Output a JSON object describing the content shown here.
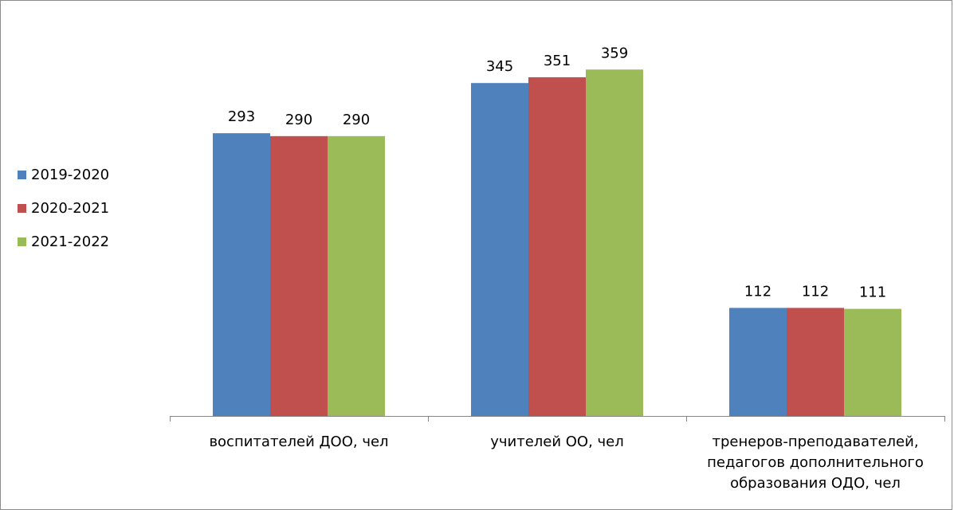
{
  "chart_data": {
    "type": "bar",
    "title": "",
    "xlabel": "",
    "ylabel": "",
    "categories": [
      [
        "воспитателей ДОО, чел"
      ],
      [
        "учителей ОО, чел"
      ],
      [
        "тренеров-преподавателей,",
        "педагогов дополнительного",
        "образования ОДО, чел"
      ]
    ],
    "series": [
      {
        "name": "2019-2020",
        "color": "#4f81bd",
        "values": [
          293,
          345,
          112
        ]
      },
      {
        "name": "2020-2021",
        "color": "#c0504d",
        "values": [
          290,
          351,
          112
        ]
      },
      {
        "name": "2021-2022",
        "color": "#9bbb59",
        "values": [
          290,
          359,
          111
        ]
      }
    ],
    "ylim": [
      0,
      400
    ],
    "grid": false,
    "legend": "left"
  }
}
